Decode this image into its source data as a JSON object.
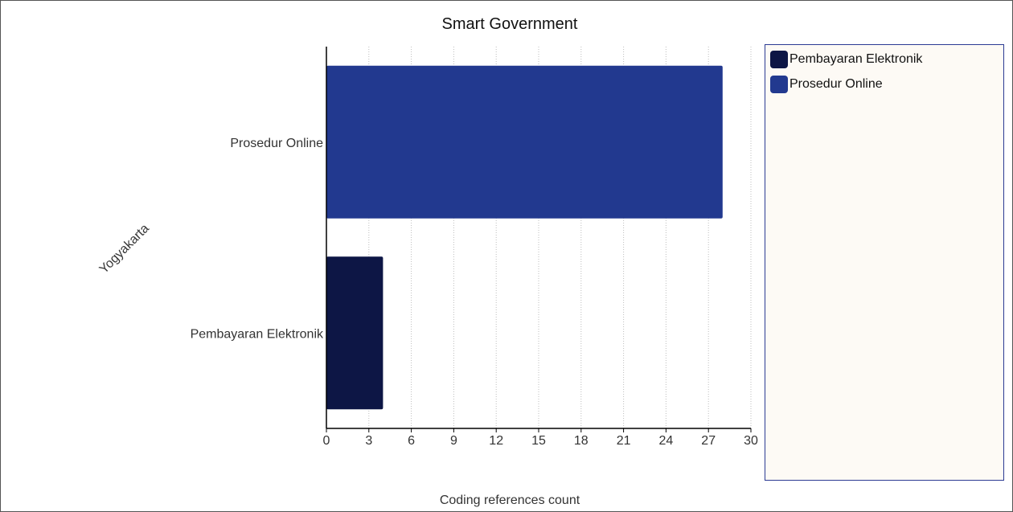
{
  "chart_data": {
    "type": "bar",
    "orientation": "horizontal",
    "title": "Smart Government",
    "xlabel": "Coding references count",
    "group_label": "Yogyakarta",
    "categories": [
      "Prosedur Online",
      "Pembayaran Elektronik"
    ],
    "values": [
      28,
      4
    ],
    "colors": [
      "#22398f",
      "#0d1645"
    ],
    "xlim": [
      0,
      30
    ],
    "xticks": [
      0,
      3,
      6,
      9,
      12,
      15,
      18,
      21,
      24,
      27,
      30
    ],
    "grid": "vertical-dotted",
    "legend_position": "right",
    "legend": [
      {
        "label": "Pembayaran Elektronik",
        "color": "#0d1645"
      },
      {
        "label": "Prosedur Online",
        "color": "#22398f"
      }
    ]
  }
}
